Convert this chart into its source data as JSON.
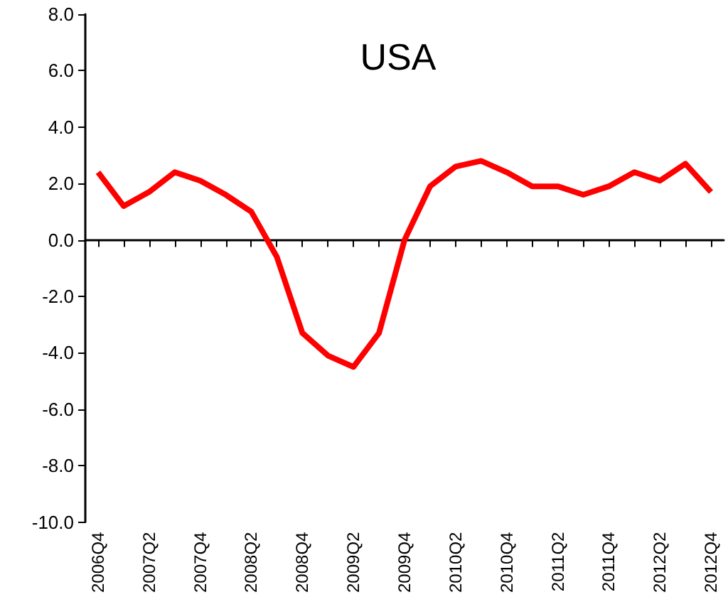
{
  "chart_data": {
    "type": "line",
    "title": "USA",
    "categories": [
      "2006Q4",
      null,
      "2007Q2",
      null,
      "2007Q4",
      null,
      "2008Q2",
      null,
      "2008Q4",
      null,
      "2009Q2",
      null,
      "2009Q4",
      null,
      "2010Q2",
      null,
      "2010Q4",
      null,
      "2011Q2",
      null,
      "2011Q4",
      null,
      "2012Q2",
      null,
      "2012Q4"
    ],
    "series": [
      {
        "color": "#ff0000",
        "values": [
          2.4,
          1.2,
          1.7,
          2.4,
          2.1,
          1.6,
          1.0,
          -0.6,
          -3.3,
          -4.1,
          -4.5,
          -3.3,
          0.0,
          1.9,
          2.6,
          2.8,
          2.4,
          1.9,
          1.9,
          1.6,
          1.9,
          2.4,
          2.1,
          2.7,
          1.7
        ]
      }
    ],
    "ylim": [
      -10,
      8
    ],
    "yticks": [
      {
        "value": -10,
        "label": "-10.0"
      },
      {
        "value": -8,
        "label": "-8.0"
      },
      {
        "value": -6,
        "label": "-6.0"
      },
      {
        "value": -4,
        "label": "-4.0"
      },
      {
        "value": -2,
        "label": "-2.0"
      },
      {
        "value": 0,
        "label": "0.0"
      },
      {
        "value": 2,
        "label": "2.0"
      },
      {
        "value": 4,
        "label": "4.0"
      },
      {
        "value": 6,
        "label": "6.0"
      },
      {
        "value": 8,
        "label": "8.0"
      }
    ],
    "marker": "none",
    "line_style": "solid"
  }
}
